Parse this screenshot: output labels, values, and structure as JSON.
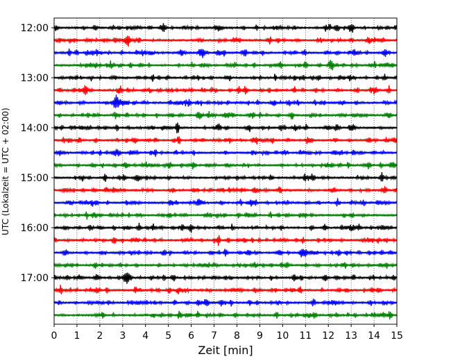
{
  "chart_data": {
    "type": "line",
    "title": "",
    "xlabel": "Zeit  [min]",
    "ylabel": "UTC (Lokalzeit = UTC + 02:00)",
    "xlim": [
      0,
      15
    ],
    "xticks": [
      0,
      1,
      2,
      3,
      4,
      5,
      6,
      7,
      8,
      9,
      10,
      11,
      12,
      13,
      14,
      15
    ],
    "xgrid": "dotted vertical",
    "legend": "none",
    "y_tick_labels": [
      "12:00",
      "13:00",
      "14:00",
      "15:00",
      "16:00",
      "17:00"
    ],
    "series_colors_cycle": [
      "#000000",
      "#ff0000",
      "#0000ff",
      "#008000"
    ],
    "traces": [
      {
        "start": "12:00",
        "color": "#000000",
        "events": [
          {
            "x": 13.0,
            "a": 0.4
          },
          {
            "x": 4.8,
            "a": 0.3
          }
        ]
      },
      {
        "start": "12:15",
        "color": "#ff0000",
        "events": [
          {
            "x": 3.2,
            "a": 0.95
          }
        ]
      },
      {
        "start": "12:30",
        "color": "#0000ff",
        "events": [
          {
            "x": 6.45,
            "a": 0.85
          },
          {
            "x": 7.2,
            "a": 0.5
          }
        ]
      },
      {
        "start": "12:45",
        "color": "#008000",
        "events": [
          {
            "x": 12.1,
            "a": 0.45
          }
        ]
      },
      {
        "start": "13:00",
        "color": "#000000",
        "events": []
      },
      {
        "start": "13:15",
        "color": "#ff0000",
        "events": [
          {
            "x": 1.35,
            "a": 0.8
          },
          {
            "x": 8.4,
            "a": 0.3
          }
        ]
      },
      {
        "start": "13:30",
        "color": "#0000ff",
        "events": [
          {
            "x": 2.75,
            "a": 1.2
          },
          {
            "x": 12.6,
            "a": 0.3
          }
        ]
      },
      {
        "start": "13:45",
        "color": "#008000",
        "events": []
      },
      {
        "start": "14:00",
        "color": "#000000",
        "events": [
          {
            "x": 8.5,
            "a": 0.4
          },
          {
            "x": 13.1,
            "a": 0.45
          },
          {
            "x": 1.2,
            "a": 0.3
          }
        ]
      },
      {
        "start": "14:15",
        "color": "#ff0000",
        "events": [
          {
            "x": 14.9,
            "a": 0.4
          }
        ]
      },
      {
        "start": "14:30",
        "color": "#0000ff",
        "events": [
          {
            "x": 2.8,
            "a": 0.3
          }
        ]
      },
      {
        "start": "14:45",
        "color": "#008000",
        "events": [
          {
            "x": 12.0,
            "a": 0.3
          }
        ]
      },
      {
        "start": "15:00",
        "color": "#000000",
        "events": [
          {
            "x": 11.3,
            "a": 0.3
          }
        ]
      },
      {
        "start": "15:15",
        "color": "#ff0000",
        "events": []
      },
      {
        "start": "15:30",
        "color": "#0000ff",
        "events": [
          {
            "x": 6.3,
            "a": 0.35
          },
          {
            "x": 14.2,
            "a": 0.3
          }
        ]
      },
      {
        "start": "15:45",
        "color": "#008000",
        "events": [
          {
            "x": 8.5,
            "a": 0.35
          }
        ]
      },
      {
        "start": "16:00",
        "color": "#000000",
        "events": [
          {
            "x": 0.5,
            "a": 0.35
          },
          {
            "x": 2.0,
            "a": 0.3
          },
          {
            "x": 5.7,
            "a": 0.3
          }
        ]
      },
      {
        "start": "16:15",
        "color": "#ff0000",
        "events": []
      },
      {
        "start": "16:30",
        "color": "#0000ff",
        "events": [
          {
            "x": 0.5,
            "a": 0.55
          },
          {
            "x": 10.9,
            "a": 0.9
          }
        ]
      },
      {
        "start": "16:45",
        "color": "#008000",
        "events": []
      },
      {
        "start": "17:00",
        "color": "#000000",
        "events": [
          {
            "x": 3.2,
            "a": 1.05
          },
          {
            "x": 12.4,
            "a": 0.35
          }
        ]
      },
      {
        "start": "17:15",
        "color": "#ff0000",
        "events": [
          {
            "x": 14.2,
            "a": 0.35
          }
        ]
      },
      {
        "start": "17:30",
        "color": "#0000ff",
        "events": [
          {
            "x": 9.8,
            "a": 0.3
          }
        ]
      },
      {
        "start": "17:45",
        "color": "#008000",
        "events": []
      }
    ]
  }
}
